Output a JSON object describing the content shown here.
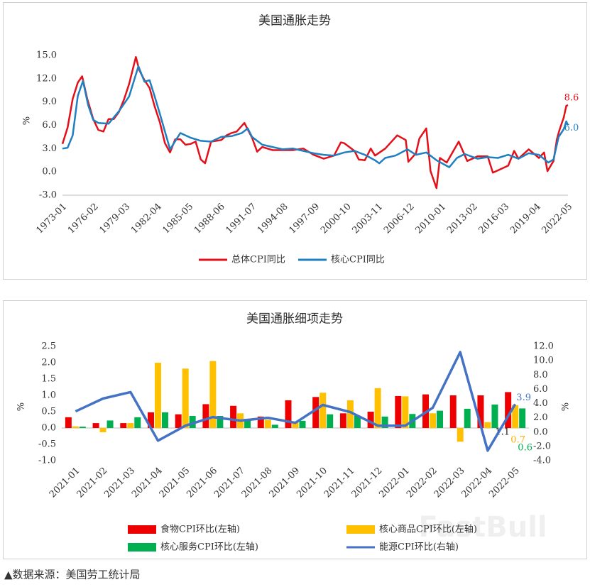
{
  "chart_data": [
    {
      "type": "line",
      "title": "美国通胀走势",
      "ylabel": "%",
      "xlim": [
        "1973-01",
        "2022-05"
      ],
      "xticks": [
        "1973-01",
        "1976-02",
        "1979-03",
        "1982-04",
        "1985-05",
        "1988-06",
        "1991-07",
        "1994-08",
        "1997-09",
        "2000-10",
        "2003-11",
        "2006-12",
        "2010-01",
        "2013-02",
        "2016-03",
        "2019-04",
        "2022-05"
      ],
      "ylim": [
        -3,
        15
      ],
      "yticks": [
        {
          "value": 15,
          "label": "15.0"
        },
        {
          "value": 12,
          "label": "12.0"
        },
        {
          "value": 9,
          "label": "9.0"
        },
        {
          "value": 6,
          "label": "6.0"
        },
        {
          "value": 3,
          "label": "3.0"
        },
        {
          "value": 0,
          "label": "0.0"
        },
        {
          "value": -3,
          "label": "-3.0"
        }
      ],
      "grid": false,
      "legend": "bottom",
      "series": [
        {
          "name": "总体CPI同比",
          "color": "#e3101a",
          "end_label": "8.6",
          "x": [
            "1973-01",
            "1973-07",
            "1974-01",
            "1974-07",
            "1974-12",
            "1975-06",
            "1976-01",
            "1976-07",
            "1977-01",
            "1977-07",
            "1978-01",
            "1978-07",
            "1979-01",
            "1979-07",
            "1980-03",
            "1980-07",
            "1981-01",
            "1981-07",
            "1982-01",
            "1982-07",
            "1983-01",
            "1983-07",
            "1984-01",
            "1984-07",
            "1985-01",
            "1985-07",
            "1986-01",
            "1986-07",
            "1986-12",
            "1987-07",
            "1988-01",
            "1988-07",
            "1989-01",
            "1989-07",
            "1990-01",
            "1990-10",
            "1991-07",
            "1992-01",
            "1992-07",
            "1993-07",
            "1994-07",
            "1995-07",
            "1996-07",
            "1997-07",
            "1998-07",
            "1999-07",
            "2000-03",
            "2000-07",
            "2001-07",
            "2001-12",
            "2002-07",
            "2003-02",
            "2003-07",
            "2004-07",
            "2005-09",
            "2006-07",
            "2006-10",
            "2007-07",
            "2007-11",
            "2008-07",
            "2008-12",
            "2009-07",
            "2009-11",
            "2010-07",
            "2011-09",
            "2012-07",
            "2013-07",
            "2014-07",
            "2015-01",
            "2015-07",
            "2016-07",
            "2017-02",
            "2017-07",
            "2018-07",
            "2019-07",
            "2020-01",
            "2020-05",
            "2020-12",
            "2021-04",
            "2021-07",
            "2021-12",
            "2022-03",
            "2022-05"
          ],
          "values": [
            3.6,
            5.7,
            9.4,
            11.5,
            12.3,
            9.4,
            6.8,
            5.4,
            5.2,
            6.8,
            6.8,
            7.7,
            9.3,
            11.3,
            14.8,
            13.1,
            11.8,
            10.8,
            8.4,
            6.4,
            3.7,
            2.5,
            4.2,
            4.2,
            3.5,
            3.6,
            3.9,
            1.6,
            1.1,
            3.9,
            4.0,
            4.1,
            4.7,
            5.0,
            5.2,
            6.3,
            4.4,
            2.6,
            3.2,
            2.8,
            2.8,
            2.8,
            3.0,
            2.2,
            1.7,
            2.1,
            3.8,
            3.7,
            2.7,
            1.6,
            1.5,
            3.0,
            2.1,
            3.0,
            4.7,
            4.1,
            1.3,
            2.4,
            4.3,
            5.6,
            0.1,
            -2.1,
            1.8,
            1.2,
            3.9,
            1.4,
            2.0,
            2.0,
            -0.1,
            0.2,
            0.8,
            2.7,
            1.7,
            2.9,
            1.8,
            2.5,
            0.1,
            1.4,
            4.2,
            5.4,
            7.0,
            8.5,
            8.6
          ]
        },
        {
          "name": "核心CPI同比",
          "color": "#1f7fc0",
          "end_label": "6.0",
          "x": [
            "1973-01",
            "1973-07",
            "1974-01",
            "1974-07",
            "1975-01",
            "1975-07",
            "1976-01",
            "1976-07",
            "1977-07",
            "1978-07",
            "1979-07",
            "1980-06",
            "1981-01",
            "1981-07",
            "1982-01",
            "1982-07",
            "1983-07",
            "1984-07",
            "1985-07",
            "1986-07",
            "1987-07",
            "1988-07",
            "1989-07",
            "1990-07",
            "1991-02",
            "1991-07",
            "1992-07",
            "1993-07",
            "1994-07",
            "1995-07",
            "1996-07",
            "1997-07",
            "1998-07",
            "1999-07",
            "2000-07",
            "2001-07",
            "2002-07",
            "2003-07",
            "2003-12",
            "2004-07",
            "2005-07",
            "2006-09",
            "2007-07",
            "2008-07",
            "2009-07",
            "2010-10",
            "2011-07",
            "2012-04",
            "2013-07",
            "2014-07",
            "2015-07",
            "2016-07",
            "2017-07",
            "2018-07",
            "2019-07",
            "2020-06",
            "2020-12",
            "2021-06",
            "2021-12",
            "2022-03",
            "2022-05"
          ],
          "values": [
            3.0,
            3.1,
            4.7,
            9.8,
            11.7,
            8.6,
            6.7,
            6.3,
            6.2,
            7.8,
            9.7,
            13.6,
            11.6,
            11.8,
            9.7,
            7.5,
            2.9,
            5.0,
            4.4,
            4.0,
            3.9,
            4.5,
            4.6,
            5.0,
            5.6,
            4.5,
            3.5,
            3.2,
            2.9,
            3.0,
            2.7,
            2.4,
            2.2,
            2.1,
            2.5,
            2.7,
            2.2,
            1.5,
            1.1,
            1.8,
            2.1,
            2.9,
            2.2,
            2.5,
            1.5,
            0.6,
            1.8,
            2.3,
            1.7,
            1.9,
            1.8,
            2.2,
            1.7,
            2.4,
            2.2,
            1.2,
            1.6,
            4.5,
            5.5,
            6.5,
            6.0
          ]
        }
      ]
    },
    {
      "type": "bar-line",
      "title": "美国通胀细项走势",
      "ylabel": "%",
      "y2label": "%",
      "categories": [
        "2021-01",
        "2021-02",
        "2021-03",
        "2021-04",
        "2021-05",
        "2021-06",
        "2021-07",
        "2021-08",
        "2021-09",
        "2021-10",
        "2021-11",
        "2021-12",
        "2022-01",
        "2022-02",
        "2022-03",
        "2022-04",
        "2022-05"
      ],
      "ylim": [
        -1,
        2.5
      ],
      "yticks": [
        2.5,
        {
          "value": 2,
          "label": "2.0"
        },
        1.5,
        {
          "value": 1,
          "label": "1.0"
        },
        0.5,
        {
          "value": 0,
          "label": "0.0"
        },
        -0.5,
        {
          "value": -1,
          "label": "-1.0"
        }
      ],
      "y2lim": [
        -4,
        12
      ],
      "y2ticks": [
        {
          "value": 12,
          "label": "12.0"
        },
        {
          "value": 10,
          "label": "10.0"
        },
        {
          "value": 8,
          "label": "8.0"
        },
        {
          "value": 6,
          "label": "6.0"
        },
        {
          "value": 4,
          "label": "4.0"
        },
        {
          "value": 2,
          "label": "2.0"
        },
        {
          "value": 0,
          "label": "0.0"
        },
        {
          "value": -2,
          "label": "-2.0"
        },
        {
          "value": -4,
          "label": "-4.0"
        }
      ],
      "legend": "bottom",
      "series": [
        {
          "name": "食物CPI环比(左轴)",
          "kind": "bar",
          "color": "#ee0000",
          "label_color": "#222222",
          "values": [
            0.33,
            0.15,
            0.15,
            0.48,
            0.42,
            0.73,
            0.68,
            0.35,
            0.85,
            0.95,
            0.45,
            0.5,
            0.98,
            1.03,
            1.0,
            1.0,
            1.1
          ]
        },
        {
          "name": "核心商品CPI环比(左轴)",
          "kind": "bar",
          "color": "#ffc000",
          "label_color": "#ffb000",
          "values": [
            0.05,
            -0.13,
            0.15,
            2.0,
            1.82,
            2.05,
            0.45,
            0.25,
            0.2,
            1.08,
            0.85,
            1.22,
            0.97,
            0.45,
            -0.42,
            0.18,
            0.7
          ]
        },
        {
          "name": "核心服务CPI环比(左轴)",
          "kind": "bar",
          "color": "#00b050",
          "label_color": "#00b050",
          "values": [
            0.04,
            0.23,
            0.33,
            0.48,
            0.37,
            0.37,
            0.28,
            0.1,
            0.22,
            0.42,
            0.38,
            0.35,
            0.43,
            0.53,
            0.59,
            0.72,
            0.6
          ]
        },
        {
          "name": "能源CPI环比(右轴)",
          "kind": "line",
          "axis": "y2",
          "color": "#4472c4",
          "label_color": "#4472c4",
          "values": [
            2.9,
            4.7,
            5.6,
            -1.2,
            0.9,
            2.1,
            1.6,
            2.0,
            1.3,
            3.8,
            2.8,
            0.9,
            0.9,
            3.4,
            11.2,
            -2.6,
            3.9
          ]
        }
      ]
    }
  ],
  "watermark": "FastBull",
  "source": "▲数据来源：美国劳工统计局"
}
